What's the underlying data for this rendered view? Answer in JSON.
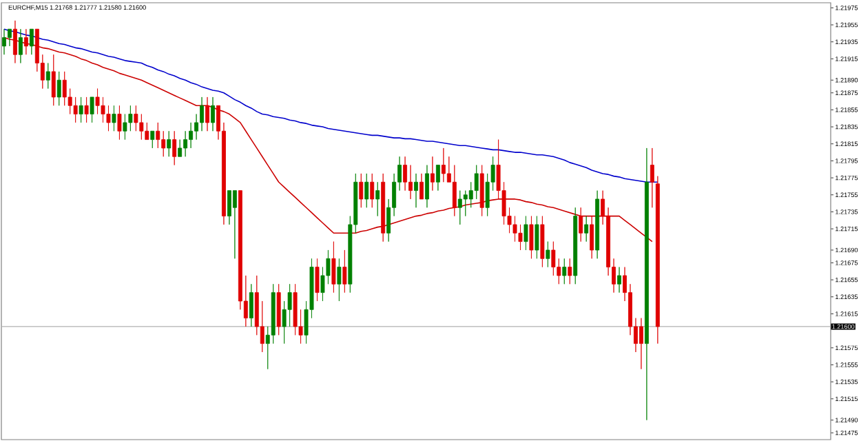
{
  "chart_data": {
    "type": "candlestick",
    "title": "EURCHF,M15 1.21768 1.21777 1.21580 1.21600",
    "categories": [
      null,
      null,
      null,
      null,
      null,
      null,
      null,
      null,
      null,
      null,
      null,
      null,
      null,
      null,
      null,
      null,
      null,
      null,
      null,
      null,
      null,
      null,
      null,
      null,
      null,
      null,
      null,
      null,
      null,
      null,
      null,
      null,
      null,
      null,
      null,
      null,
      null,
      null,
      null,
      null,
      null,
      null,
      null,
      null,
      null,
      null,
      null,
      null,
      null,
      null,
      null,
      null,
      null,
      null,
      null,
      null,
      null,
      null,
      null,
      null,
      null,
      null,
      null,
      null,
      null,
      null,
      null,
      null,
      null,
      null,
      null,
      null,
      null,
      null,
      null,
      null,
      null,
      null,
      null,
      null,
      null,
      null,
      null,
      null,
      null,
      null,
      null,
      null,
      null,
      null,
      null,
      null,
      null,
      null,
      null,
      null,
      null,
      null,
      null,
      null,
      null,
      null,
      null,
      null,
      null,
      null,
      null,
      null,
      null,
      null,
      null,
      null,
      null,
      null,
      null,
      null,
      null,
      null,
      null,
      null,
      null,
      null,
      null,
      null,
      null,
      null,
      null,
      null,
      null,
      null,
      null,
      null,
      null,
      null,
      null,
      null,
      null,
      null,
      null,
      null,
      null,
      null,
      null,
      null,
      null,
      null,
      null,
      null,
      null,
      null,
      null
    ],
    "ohlc": [
      [
        1.2193,
        1.2195,
        1.2192,
        1.2194
      ],
      [
        1.2194,
        1.2195,
        1.2193,
        1.2195
      ],
      [
        1.2195,
        1.2196,
        1.2191,
        1.2192
      ],
      [
        1.2192,
        1.2195,
        1.2191,
        1.2194
      ],
      [
        1.2194,
        1.2195,
        1.2192,
        1.2193
      ],
      [
        1.2193,
        1.2195,
        1.2192,
        1.2195
      ],
      [
        1.2195,
        1.2195,
        1.219,
        1.2191
      ],
      [
        1.2191,
        1.2192,
        1.2188,
        1.2189
      ],
      [
        1.2189,
        1.2191,
        1.2188,
        1.219
      ],
      [
        1.219,
        1.2192,
        1.2186,
        1.2187
      ],
      [
        1.2187,
        1.219,
        1.2186,
        1.2189
      ],
      [
        1.2189,
        1.219,
        1.2186,
        1.2187
      ],
      [
        1.2187,
        1.2188,
        1.2185,
        1.2186
      ],
      [
        1.2186,
        1.2187,
        1.2184,
        1.2185
      ],
      [
        1.2185,
        1.2187,
        1.2184,
        1.2186
      ],
      [
        1.2186,
        1.2187,
        1.2184,
        1.2185
      ],
      [
        1.2185,
        1.2187,
        1.2184,
        1.2187
      ],
      [
        1.2187,
        1.2188,
        1.2185,
        1.2186
      ],
      [
        1.2186,
        1.2187,
        1.2184,
        1.2185
      ],
      [
        1.2185,
        1.2186,
        1.2183,
        1.2184
      ],
      [
        1.2184,
        1.2186,
        1.2183,
        1.2185
      ],
      [
        1.2185,
        1.2186,
        1.2182,
        1.2183
      ],
      [
        1.2183,
        1.2185,
        1.2182,
        1.2184
      ],
      [
        1.2184,
        1.2186,
        1.2183,
        1.2185
      ],
      [
        1.2185,
        1.2186,
        1.2183,
        1.2184
      ],
      [
        1.2184,
        1.2185,
        1.2182,
        1.2183
      ],
      [
        1.2183,
        1.2184,
        1.2182,
        1.2182
      ],
      [
        1.2182,
        1.2183,
        1.2181,
        1.2183
      ],
      [
        1.2183,
        1.2184,
        1.2181,
        1.2182
      ],
      [
        1.2182,
        1.2183,
        1.218,
        1.2181
      ],
      [
        1.2181,
        1.2183,
        1.218,
        1.2182
      ],
      [
        1.2182,
        1.2183,
        1.2179,
        1.218
      ],
      [
        1.218,
        1.2182,
        1.218,
        1.2181
      ],
      [
        1.2181,
        1.2183,
        1.218,
        1.2182
      ],
      [
        1.2182,
        1.2184,
        1.2181,
        1.2183
      ],
      [
        1.2183,
        1.2185,
        1.2182,
        1.2184
      ],
      [
        1.2184,
        1.2187,
        1.2183,
        1.2186
      ],
      [
        1.2186,
        1.2187,
        1.2183,
        1.2184
      ],
      [
        1.2184,
        1.2187,
        1.2183,
        1.2186
      ],
      [
        1.2186,
        1.2186,
        1.2182,
        1.2183
      ],
      [
        1.2183,
        1.2184,
        1.2172,
        1.2173
      ],
      [
        1.2173,
        1.2176,
        1.2172,
        1.2176
      ],
      [
        1.2174,
        1.2176,
        1.2168,
        1.2176
      ],
      [
        1.2176,
        1.2176,
        1.2162,
        1.2163
      ],
      [
        1.2163,
        1.2166,
        1.216,
        1.2161
      ],
      [
        1.2161,
        1.2165,
        1.216,
        1.2164
      ],
      [
        1.2164,
        1.2166,
        1.2159,
        1.216
      ],
      [
        1.216,
        1.2163,
        1.2157,
        1.2158
      ],
      [
        1.2158,
        1.216,
        1.2155,
        1.2159
      ],
      [
        1.2159,
        1.2165,
        1.2158,
        1.2164
      ],
      [
        1.2164,
        1.2165,
        1.2159,
        1.216
      ],
      [
        1.216,
        1.2163,
        1.2158,
        1.2162
      ],
      [
        1.2162,
        1.2165,
        1.216,
        1.2164
      ],
      [
        1.2164,
        1.2165,
        1.2159,
        1.216
      ],
      [
        1.216,
        1.2162,
        1.2158,
        1.2159
      ],
      [
        1.2159,
        1.2163,
        1.2158,
        1.2162
      ],
      [
        1.2162,
        1.2168,
        1.2161,
        1.2167
      ],
      [
        1.2167,
        1.2168,
        1.2163,
        1.2164
      ],
      [
        1.2164,
        1.2167,
        1.2163,
        1.2166
      ],
      [
        1.2166,
        1.2169,
        1.2165,
        1.2168
      ],
      [
        1.2168,
        1.217,
        1.2164,
        1.2165
      ],
      [
        1.2165,
        1.2168,
        1.2163,
        1.2167
      ],
      [
        1.2167,
        1.2169,
        1.2164,
        1.2165
      ],
      [
        1.2165,
        1.2173,
        1.2164,
        1.2172
      ],
      [
        1.2172,
        1.2178,
        1.2171,
        1.2177
      ],
      [
        1.2177,
        1.2178,
        1.2174,
        1.2175
      ],
      [
        1.2175,
        1.2178,
        1.2174,
        1.2177
      ],
      [
        1.2177,
        1.2178,
        1.2174,
        1.2175
      ],
      [
        1.2175,
        1.2177,
        1.2173,
        1.2176
      ],
      [
        1.2177,
        1.2178,
        1.217,
        1.2171
      ],
      [
        1.2171,
        1.2175,
        1.217,
        1.2174
      ],
      [
        1.2174,
        1.2178,
        1.2173,
        1.2177
      ],
      [
        1.2177,
        1.218,
        1.2176,
        1.2179
      ],
      [
        1.2179,
        1.218,
        1.2176,
        1.2177
      ],
      [
        1.2177,
        1.2179,
        1.2175,
        1.2176
      ],
      [
        1.2176,
        1.2178,
        1.2174,
        1.2177
      ],
      [
        1.2177,
        1.2178,
        1.2175,
        1.2175
      ],
      [
        1.2175,
        1.2179,
        1.2174,
        1.2178
      ],
      [
        1.2178,
        1.218,
        1.2176,
        1.2177
      ],
      [
        1.2177,
        1.2179,
        1.2176,
        1.2179
      ],
      [
        1.2179,
        1.2181,
        1.2177,
        1.2178
      ],
      [
        1.2178,
        1.218,
        1.2177,
        1.2177
      ],
      [
        1.2177,
        1.2179,
        1.2173,
        1.2174
      ],
      [
        1.2174,
        1.2176,
        1.2172,
        1.2175
      ],
      [
        1.2175,
        1.2176,
        1.2173,
        1.21755
      ],
      [
        1.2175,
        1.2177,
        1.2174,
        1.2176
      ],
      [
        1.2176,
        1.2179,
        1.2175,
        1.2178
      ],
      [
        1.2178,
        1.2179,
        1.2173,
        1.2174
      ],
      [
        1.2174,
        1.2178,
        1.2173,
        1.2177
      ],
      [
        1.2177,
        1.218,
        1.2176,
        1.2179
      ],
      [
        1.2179,
        1.2182,
        1.2175,
        1.2176
      ],
      [
        1.2176,
        1.2177,
        1.2172,
        1.2173
      ],
      [
        1.2173,
        1.2174,
        1.2171,
        1.2172
      ],
      [
        1.2172,
        1.2173,
        1.217,
        1.2171
      ],
      [
        1.2171,
        1.2172,
        1.2169,
        1.217
      ],
      [
        1.217,
        1.2173,
        1.2169,
        1.2172
      ],
      [
        1.2172,
        1.2173,
        1.2168,
        1.2169
      ],
      [
        1.2169,
        1.2173,
        1.2168,
        1.2172
      ],
      [
        1.2172,
        1.2173,
        1.2167,
        1.2168
      ],
      [
        1.2168,
        1.217,
        1.2167,
        1.2169
      ],
      [
        1.2169,
        1.217,
        1.2166,
        1.2167
      ],
      [
        1.2167,
        1.2168,
        1.2165,
        1.2166
      ],
      [
        1.2166,
        1.2168,
        1.2165,
        1.2167
      ],
      [
        1.2167,
        1.2168,
        1.2165,
        1.2166
      ],
      [
        1.2166,
        1.2174,
        1.2165,
        1.2173
      ],
      [
        1.2173,
        1.2174,
        1.217,
        1.2171
      ],
      [
        1.2171,
        1.2173,
        1.217,
        1.2172
      ],
      [
        1.2172,
        1.2173,
        1.2168,
        1.2169
      ],
      [
        1.2169,
        1.2176,
        1.2168,
        1.2175
      ],
      [
        1.2175,
        1.2176,
        1.2172,
        1.2173
      ],
      [
        1.2173,
        1.2174,
        1.2166,
        1.2167
      ],
      [
        1.2167,
        1.2168,
        1.2164,
        1.2165
      ],
      [
        1.2165,
        1.2167,
        1.2164,
        1.2166
      ],
      [
        1.2166,
        1.2167,
        1.2163,
        1.2164
      ],
      [
        1.2164,
        1.2165,
        1.2159,
        1.216
      ],
      [
        1.216,
        1.2161,
        1.2157,
        1.2158
      ],
      [
        1.216,
        1.2161,
        1.2155,
        1.2158
      ],
      [
        1.2158,
        1.2181,
        1.2149,
        1.2177
      ],
      [
        1.2179,
        1.2181,
        1.2174,
        1.2177
      ],
      [
        1.21768,
        1.21777,
        1.2158,
        1.216
      ],
      null,
      null,
      null,
      null,
      null,
      null,
      null,
      null,
      null,
      null,
      null,
      null,
      null,
      null,
      null,
      null,
      null,
      null,
      null,
      null,
      null,
      null,
      null,
      null,
      null,
      null,
      null,
      null,
      null,
      null,
      null
    ],
    "series": [
      {
        "type": "line",
        "color": "#0000cc",
        "values": [
          1.2195,
          1.21948,
          1.21947,
          1.21945,
          1.21943,
          1.21942,
          1.2194,
          1.21938,
          1.21937,
          1.21935,
          1.21933,
          1.21932,
          1.2193,
          1.21928,
          1.21927,
          1.21925,
          1.21923,
          1.21922,
          1.2192,
          1.21918,
          1.21917,
          1.21915,
          1.21913,
          1.21912,
          1.21911,
          1.2191,
          1.21907,
          1.21905,
          1.21902,
          1.219,
          1.21897,
          1.21895,
          1.21892,
          1.2189,
          1.21887,
          1.21885,
          1.21882,
          1.2188,
          1.21878,
          1.21877,
          1.21875,
          1.21871,
          1.21867,
          1.21864,
          1.2186,
          1.21857,
          1.21853,
          1.2185,
          1.21849,
          1.21847,
          1.21846,
          1.21845,
          1.21843,
          1.21842,
          1.2184,
          1.21839,
          1.21837,
          1.21836,
          1.21835,
          1.21833,
          1.21832,
          1.21831,
          1.2183,
          1.21829,
          1.21828,
          1.21827,
          1.21826,
          1.21825,
          1.21825,
          1.21824,
          1.21823,
          1.21822,
          1.21822,
          1.21821,
          1.21821,
          1.2182,
          1.21819,
          1.21818,
          1.21818,
          1.21817,
          1.21816,
          1.21815,
          1.21814,
          1.21813,
          1.21813,
          1.21812,
          1.21811,
          1.2181,
          1.21809,
          1.21808,
          1.21808,
          1.21807,
          1.21806,
          1.21805,
          1.21805,
          1.21804,
          1.21803,
          1.21802,
          1.21802,
          1.21801,
          1.218,
          1.21798,
          1.21796,
          1.21793,
          1.21791,
          1.21789,
          1.21787,
          1.21784,
          1.21782,
          1.2178,
          1.21779,
          1.21777,
          1.21776,
          1.21774,
          1.21773,
          1.21772,
          1.21771,
          1.2177,
          1.2177,
          1.2177,
          null,
          null,
          null,
          null,
          null,
          null,
          null,
          null,
          null,
          null,
          null,
          null,
          null,
          null,
          null,
          null,
          null,
          null,
          null,
          null,
          null,
          null,
          null,
          null,
          null,
          null,
          null,
          null,
          null,
          null,
          null
        ]
      },
      {
        "type": "line",
        "color": "#cc0000",
        "values": [
          1.2194,
          1.21938,
          1.21937,
          1.21935,
          1.21933,
          1.21932,
          1.2193,
          1.21928,
          1.21927,
          1.21925,
          1.21923,
          1.21922,
          1.2192,
          1.21918,
          1.21915,
          1.21913,
          1.2191,
          1.21908,
          1.21905,
          1.21903,
          1.21901,
          1.21898,
          1.21896,
          1.21894,
          1.21892,
          1.2189,
          1.21887,
          1.21884,
          1.21881,
          1.21878,
          1.21875,
          1.21872,
          1.21869,
          1.21866,
          1.21863,
          1.2186,
          1.2186,
          1.2186,
          1.21858,
          1.21855,
          1.21853,
          1.2185,
          1.21845,
          1.2184,
          1.2183,
          1.2182,
          1.2181,
          1.218,
          1.2179,
          1.2178,
          1.2177,
          1.21764,
          1.21758,
          1.21752,
          1.21746,
          1.2174,
          1.21734,
          1.21728,
          1.21722,
          1.21716,
          1.2171,
          1.2171,
          1.2171,
          1.2171,
          1.2171,
          1.21712,
          1.21713,
          1.21715,
          1.21717,
          1.21718,
          1.2172,
          1.21722,
          1.21724,
          1.21726,
          1.21728,
          1.2173,
          1.21731,
          1.21733,
          1.21734,
          1.21736,
          1.21737,
          1.21739,
          1.2174,
          1.21741,
          1.21743,
          1.21744,
          1.21745,
          1.21746,
          1.21748,
          1.21749,
          1.2175,
          1.2175,
          1.2175,
          1.2175,
          1.21749,
          1.21747,
          1.21746,
          1.21744,
          1.21743,
          1.21741,
          1.2174,
          1.21738,
          1.21736,
          1.21734,
          1.21732,
          1.2173,
          1.2173,
          1.2173,
          1.2173,
          1.2173,
          1.2173,
          1.2173,
          1.2173,
          1.21725,
          1.2172,
          1.21715,
          1.2171,
          1.21705,
          1.217,
          null,
          null,
          null,
          null,
          null,
          null,
          null,
          null,
          null,
          null,
          null,
          null,
          null,
          null,
          null,
          null,
          null,
          null,
          null,
          null,
          null,
          null,
          null,
          null,
          null,
          null,
          null,
          null,
          null,
          null,
          null,
          null
        ]
      }
    ],
    "ylim": [
      1.21467,
      1.21981
    ],
    "yticks": [
      {
        "value": 1.21975,
        "label": "1.21975"
      },
      {
        "value": 1.21955,
        "label": "1.21955"
      },
      {
        "value": 1.21935,
        "label": "1.21935"
      },
      {
        "value": 1.21915,
        "label": "1.21915"
      },
      {
        "value": 1.2189,
        "label": "1.21890"
      },
      {
        "value": 1.21875,
        "label": "1.21875"
      },
      {
        "value": 1.21855,
        "label": "1.21855"
      },
      {
        "value": 1.21835,
        "label": "1.21835"
      },
      {
        "value": 1.21815,
        "label": "1.21815"
      },
      {
        "value": 1.21795,
        "label": "1.21795"
      },
      {
        "value": 1.21775,
        "label": "1.21775"
      },
      {
        "value": 1.21755,
        "label": "1.21755"
      },
      {
        "value": 1.21735,
        "label": "1.21735"
      },
      {
        "value": 1.21715,
        "label": "1.21715"
      },
      {
        "value": 1.2169,
        "label": "1.21690"
      },
      {
        "value": 1.21675,
        "label": "1.21675"
      },
      {
        "value": 1.21655,
        "label": "1.21655"
      },
      {
        "value": 1.21635,
        "label": "1.21635"
      },
      {
        "value": 1.21615,
        "label": "1.21615"
      },
      {
        "value": 1.21575,
        "label": "1.21575"
      },
      {
        "value": 1.21555,
        "label": "1.21555"
      },
      {
        "value": 1.21535,
        "label": "1.21535"
      },
      {
        "value": 1.21515,
        "label": "1.21515"
      },
      {
        "value": 1.2149,
        "label": "1.21490"
      },
      {
        "value": 1.21475,
        "label": "1.21475"
      }
    ],
    "ref_lines": [
      {
        "axis": "y",
        "value": 1.216,
        "label": "1.21600",
        "color": "#b0b0b0"
      }
    ],
    "tick_labels": "y"
  }
}
